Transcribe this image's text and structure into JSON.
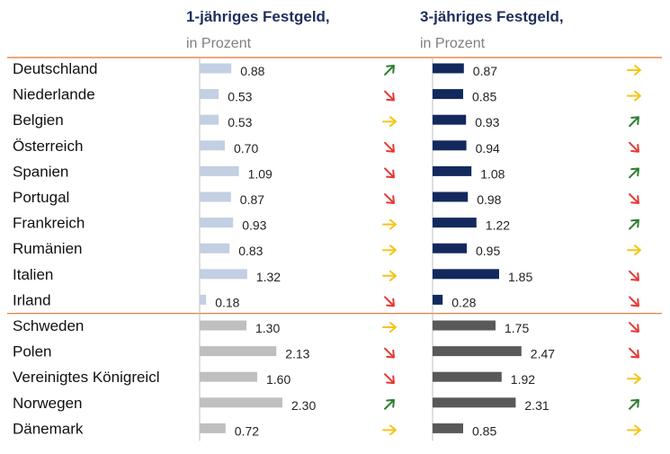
{
  "colors": {
    "one_year_eur": "#c3cfe2",
    "three_year_eur": "#13295e",
    "one_year_other": "#bfbfbf",
    "three_year_other": "#595959",
    "separator": "#e8702a",
    "axis": "#bfbfbf",
    "up": "#2e7d32",
    "down": "#e53935",
    "flat": "#f5c518"
  },
  "header": {
    "col1_title": "1-jähriges Festgeld,",
    "col1_sub": "in Prozent",
    "col2_title": "3-jähriges Festgeld,",
    "col2_sub": "in Prozent"
  },
  "chart_data": {
    "type": "bar",
    "orientation": "horizontal",
    "categories": [
      "Deutschland",
      "Niederlande",
      "Belgien",
      "Österreich",
      "Spanien",
      "Portugal",
      "Frankreich",
      "Rumänien",
      "Italien",
      "Irland",
      "Schweden",
      "Polen",
      "Vereinigtes Königreicl",
      "Norwegen",
      "Dänemark"
    ],
    "groups": [
      "eur",
      "eur",
      "eur",
      "eur",
      "eur",
      "eur",
      "eur",
      "eur",
      "eur",
      "eur",
      "other",
      "other",
      "other",
      "other",
      "other"
    ],
    "series": [
      {
        "name": "1-jähriges Festgeld, in Prozent",
        "values": [
          0.88,
          0.53,
          0.53,
          0.7,
          1.09,
          0.87,
          0.93,
          0.83,
          1.32,
          0.18,
          1.3,
          2.13,
          1.6,
          2.3,
          0.72
        ],
        "labels": [
          "0.88",
          "0.53",
          "0.53",
          "0.70",
          "1.09",
          "0.87",
          "0.93",
          "0.83",
          "1.32",
          "0.18",
          "1.30",
          "2.13",
          "1.60",
          "2.30",
          "0.72"
        ],
        "trend": [
          "up",
          "down",
          "flat",
          "down",
          "down",
          "down",
          "flat",
          "flat",
          "flat",
          "down",
          "flat",
          "down",
          "down",
          "up",
          "flat"
        ]
      },
      {
        "name": "3-jähriges Festgeld, in Prozent",
        "values": [
          0.87,
          0.85,
          0.93,
          0.94,
          1.08,
          0.98,
          1.22,
          0.95,
          1.85,
          0.28,
          1.75,
          2.47,
          1.92,
          2.31,
          0.85
        ],
        "labels": [
          "0.87",
          "0.85",
          "0.93",
          "0.94",
          "1.08",
          "0.98",
          "1.22",
          "0.95",
          "1.85",
          "0.28",
          "1.75",
          "2.47",
          "1.92",
          "2.31",
          "0.85"
        ],
        "trend": [
          "flat",
          "flat",
          "up",
          "down",
          "up",
          "down",
          "up",
          "flat",
          "down",
          "down",
          "down",
          "down",
          "flat",
          "up",
          "flat"
        ]
      }
    ]
  }
}
